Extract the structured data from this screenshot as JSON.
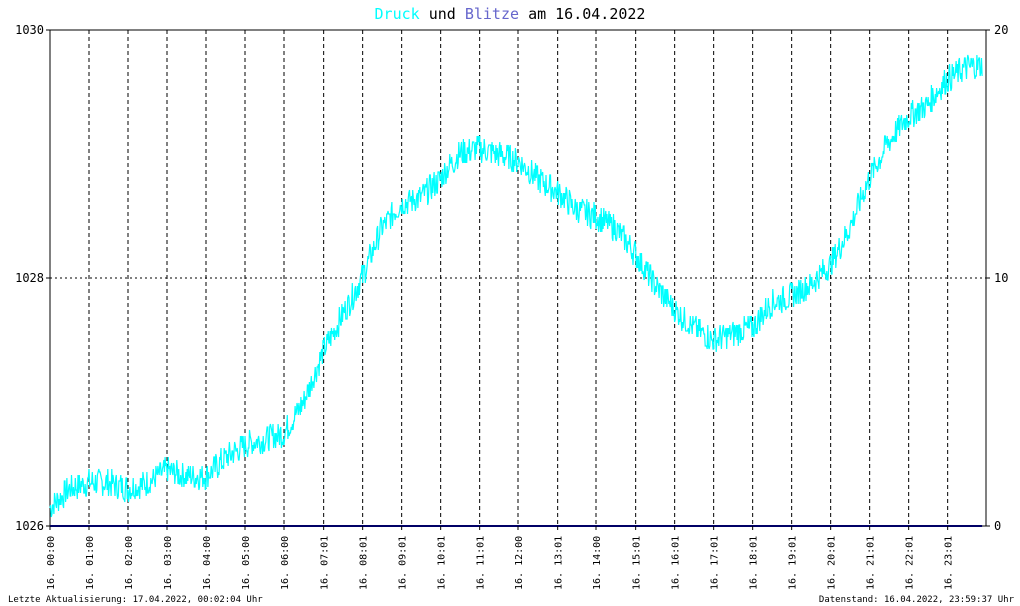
{
  "title": {
    "part1": "Druck",
    "part2": "und",
    "part3": "Blitze",
    "part4": "am 16.04.2022"
  },
  "colors": {
    "druck": "#00ffff",
    "blitze": "#6666cc",
    "baseline": "#000066",
    "grid": "#000000",
    "text": "#000000",
    "background": "#ffffff"
  },
  "footer": {
    "left": "Letzte Aktualisierung: 17.04.2022, 00:02:04 Uhr",
    "right": "Datenstand: 16.04.2022, 23:59:37 Uhr"
  },
  "chart_data": {
    "type": "line",
    "title": "Druck und Blitze am 16.04.2022",
    "x_tick_labels": [
      "16. 00:00",
      "16. 01:00",
      "16. 02:00",
      "16. 03:00",
      "16. 04:00",
      "16. 05:00",
      "16. 06:00",
      "16. 07:01",
      "16. 08:01",
      "16. 09:01",
      "16. 10:01",
      "16. 11:01",
      "16. 12:00",
      "16. 13:01",
      "16. 14:00",
      "16. 15:01",
      "16. 16:01",
      "16. 17:01",
      "16. 18:01",
      "16. 19:01",
      "16. 20:01",
      "16. 21:01",
      "16. 22:01",
      "16. 23:01"
    ],
    "x_tick_hours": [
      0,
      1,
      2,
      3,
      4,
      5,
      6,
      7.017,
      8.017,
      9.017,
      10.017,
      11.017,
      12,
      13.017,
      14,
      15.017,
      16.017,
      17.017,
      18.017,
      19.017,
      20.017,
      21.017,
      22.017,
      23.017
    ],
    "x_range_hours": [
      0,
      24
    ],
    "y_left": {
      "ylim": [
        1026,
        1030
      ],
      "ticks": [
        "1026",
        "1028",
        "1030"
      ]
    },
    "y_right": {
      "ylim": [
        0,
        20
      ],
      "ticks": [
        "0",
        "10",
        "20"
      ]
    },
    "grid": true,
    "series": [
      {
        "name": "Druck",
        "axis": "left",
        "x_hours": [
          0,
          0.5,
          1,
          1.5,
          2,
          2.5,
          3,
          3.5,
          4,
          4.5,
          5,
          5.5,
          6,
          6.5,
          7,
          7.5,
          8,
          8.5,
          9,
          9.5,
          10,
          10.5,
          11,
          11.5,
          12,
          12.5,
          13,
          13.5,
          14,
          14.5,
          15,
          15.5,
          16,
          16.5,
          17,
          17.5,
          18,
          18.5,
          19,
          19.5,
          20,
          20.5,
          21,
          21.5,
          22,
          22.5,
          23,
          23.5,
          23.9
        ],
        "values": [
          1026.15,
          1026.3,
          1026.35,
          1026.35,
          1026.3,
          1026.35,
          1026.45,
          1026.4,
          1026.4,
          1026.55,
          1026.65,
          1026.7,
          1026.75,
          1027.0,
          1027.4,
          1027.7,
          1028.0,
          1028.4,
          1028.6,
          1028.65,
          1028.8,
          1029.0,
          1029.05,
          1029.0,
          1028.95,
          1028.8,
          1028.7,
          1028.55,
          1028.5,
          1028.4,
          1028.2,
          1027.95,
          1027.75,
          1027.6,
          1027.5,
          1027.55,
          1027.6,
          1027.8,
          1027.85,
          1027.95,
          1028.1,
          1028.4,
          1028.8,
          1029.1,
          1029.3,
          1029.4,
          1029.6,
          1029.7,
          1029.72
        ]
      },
      {
        "name": "Blitze",
        "axis": "right",
        "x_hours": [
          0,
          23.9
        ],
        "values": [
          0,
          0
        ]
      }
    ]
  }
}
